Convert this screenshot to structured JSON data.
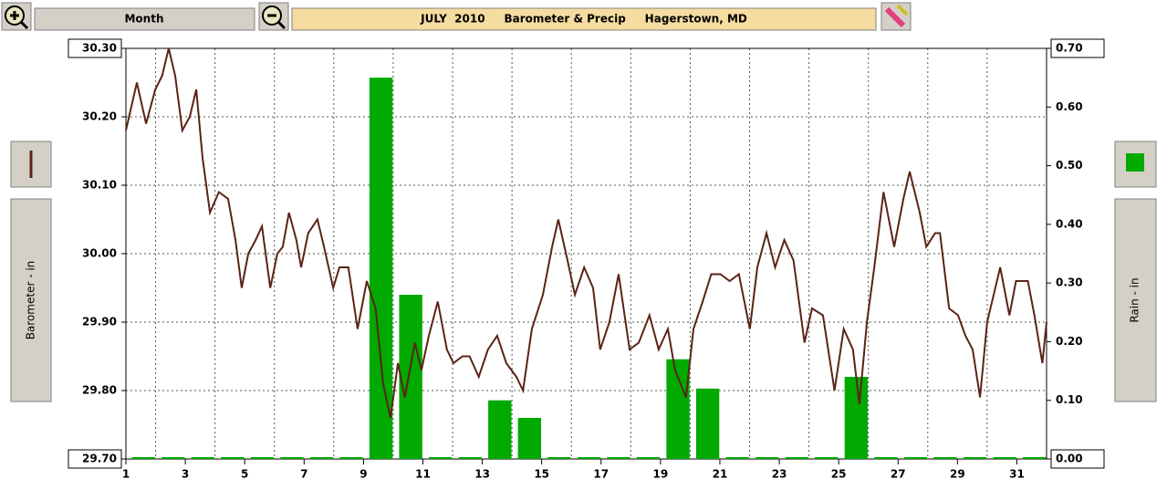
{
  "chart_data": {
    "type": "line",
    "title": "JULY  2010     Barometer & Precip     Hagerstown, MD",
    "button": "Month",
    "ylabel": "Barometer - in",
    "y2label": "Rain - in",
    "xlim": [
      1,
      32
    ],
    "xticks": [
      1,
      3,
      5,
      7,
      9,
      11,
      13,
      15,
      17,
      19,
      21,
      23,
      25,
      27,
      29,
      31
    ],
    "xgrid": [
      2,
      4,
      6,
      8,
      10,
      12,
      14,
      16,
      18,
      20,
      22,
      24,
      26,
      28,
      30
    ],
    "ylim": [
      29.7,
      30.3
    ],
    "yticks": [
      {
        "value": 29.7,
        "label": "29.70"
      },
      {
        "value": 29.8,
        "label": "29.80"
      },
      {
        "value": 29.9,
        "label": "29.90"
      },
      {
        "value": 30.0,
        "label": "30.00"
      },
      {
        "value": 30.1,
        "label": "30.10"
      },
      {
        "value": 30.2,
        "label": "30.20"
      },
      {
        "value": 30.3,
        "label": "30.30"
      }
    ],
    "y2lim": [
      0,
      0.7
    ],
    "y2ticks": [
      {
        "value": 0,
        "label": "0.00"
      },
      {
        "value": 0.1,
        "label": "0.10"
      },
      {
        "value": 0.2,
        "label": "0.20"
      },
      {
        "value": 0.3,
        "label": "0.30"
      },
      {
        "value": 0.4,
        "label": "0.40"
      },
      {
        "value": 0.5,
        "label": "0.50"
      },
      {
        "value": 0.6,
        "label": "0.60"
      },
      {
        "value": 0.7,
        "label": "0.70"
      }
    ],
    "grid": true,
    "series": [
      {
        "type": "line",
        "color": "#5a2416",
        "x": [
          1.0,
          1.37,
          1.68,
          1.99,
          2.22,
          2.44,
          2.66,
          2.9,
          3.15,
          3.37,
          3.58,
          3.83,
          4.13,
          4.44,
          4.69,
          4.9,
          5.12,
          5.37,
          5.58,
          5.86,
          6.1,
          6.28,
          6.49,
          6.74,
          6.9,
          7.14,
          7.45,
          7.67,
          7.98,
          8.19,
          8.49,
          8.8,
          9.11,
          9.41,
          9.66,
          9.91,
          10.16,
          10.39,
          10.73,
          10.95,
          11.2,
          11.5,
          11.81,
          12.03,
          12.33,
          12.57,
          12.88,
          13.19,
          13.5,
          13.81,
          14.15,
          14.37,
          14.67,
          15.04,
          15.35,
          15.56,
          15.87,
          16.12,
          16.43,
          16.73,
          16.97,
          17.28,
          17.59,
          17.96,
          18.27,
          18.63,
          18.94,
          19.25,
          19.49,
          19.86,
          20.11,
          20.42,
          20.71,
          21.02,
          21.33,
          21.64,
          22.01,
          22.26,
          22.57,
          22.86,
          23.17,
          23.48,
          23.85,
          24.1,
          24.47,
          24.86,
          25.17,
          25.48,
          25.7,
          25.95,
          26.2,
          26.51,
          26.87,
          27.18,
          27.39,
          27.73,
          27.95,
          28.25,
          28.41,
          28.72,
          29.02,
          29.27,
          29.51,
          29.76,
          30.0,
          30.44,
          30.75,
          30.97,
          31.37,
          31.59,
          31.86,
          32.0
        ],
        "values": [
          30.18,
          30.25,
          30.19,
          30.24,
          30.26,
          30.3,
          30.26,
          30.18,
          30.2,
          30.24,
          30.14,
          30.06,
          30.09,
          30.08,
          30.02,
          29.95,
          30.0,
          30.02,
          30.04,
          29.95,
          30.0,
          30.01,
          30.06,
          30.02,
          29.98,
          30.03,
          30.05,
          30.01,
          29.95,
          29.98,
          29.98,
          29.89,
          29.96,
          29.92,
          29.81,
          29.76,
          29.84,
          29.79,
          29.87,
          29.83,
          29.88,
          29.93,
          29.86,
          29.84,
          29.85,
          29.85,
          29.82,
          29.86,
          29.88,
          29.84,
          29.82,
          29.8,
          29.89,
          29.94,
          30.01,
          30.05,
          29.99,
          29.94,
          29.98,
          29.95,
          29.86,
          29.9,
          29.97,
          29.86,
          29.87,
          29.91,
          29.86,
          29.89,
          29.83,
          29.79,
          29.89,
          29.93,
          29.97,
          29.97,
          29.96,
          29.97,
          29.89,
          29.98,
          30.03,
          29.98,
          30.02,
          29.99,
          29.87,
          29.92,
          29.91,
          29.8,
          29.89,
          29.86,
          29.78,
          29.9,
          29.98,
          30.09,
          30.01,
          30.08,
          30.12,
          30.06,
          30.01,
          30.03,
          30.03,
          29.92,
          29.91,
          29.88,
          29.86,
          29.79,
          29.9,
          29.98,
          29.91,
          29.96,
          29.96,
          29.91,
          29.84,
          29.9
        ]
      },
      {
        "type": "bar",
        "axis": "y2",
        "color": "#00aa00",
        "x": [
          1,
          2,
          3,
          4,
          5,
          6,
          7,
          8,
          9,
          10,
          11,
          12,
          13,
          14,
          15,
          16,
          17,
          18,
          19,
          20,
          21,
          22,
          23,
          24,
          25,
          26,
          27,
          28,
          29,
          30,
          31
        ],
        "values": [
          0,
          0,
          0,
          0,
          0,
          0,
          0,
          0,
          0.65,
          0.28,
          0,
          0,
          0.1,
          0.07,
          0,
          0,
          0,
          0,
          0.17,
          0.12,
          0,
          0,
          0,
          0,
          0.14,
          0,
          0,
          0,
          0,
          0,
          0
        ]
      }
    ]
  }
}
